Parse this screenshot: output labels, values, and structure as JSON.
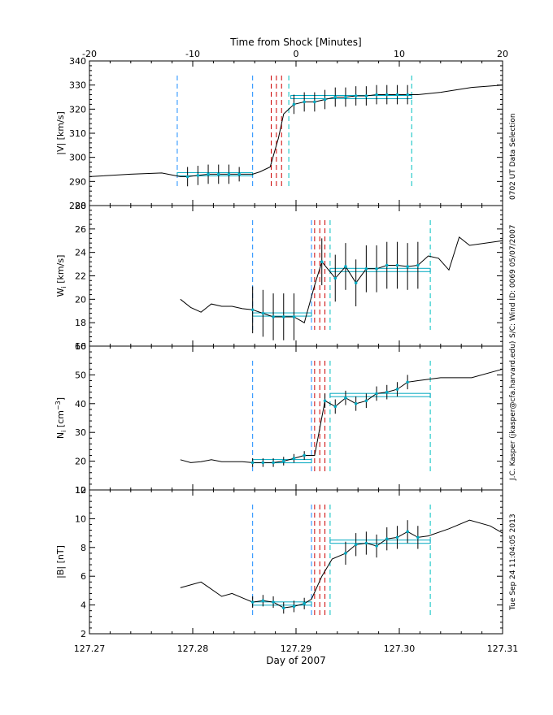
{
  "colors": {
    "axis": "#000000",
    "data": "#000000",
    "fit": "#00a8c0",
    "blue_dash": "#1a8cff",
    "cyan_dash": "#00c0c0",
    "red_dash": "#cc0000"
  },
  "top_axis": {
    "label": "Time from Shock [Minutes]",
    "range": [
      -20,
      20
    ],
    "ticks": [
      -20,
      -10,
      0,
      10,
      20
    ]
  },
  "bottom_axis": {
    "label": "Day of 2007",
    "range": [
      127.27,
      127.31
    ],
    "ticks": [
      "127.27",
      "127.28",
      "127.29",
      "127.30",
      "127.31"
    ]
  },
  "side_texts": [
    "0702 UT Data Selection",
    "S/C: Wind ID: 0069 05/07/2007",
    "J.C. Kasper (jkasper@cfa.harvard.edu)",
    "Tue Sep 24 11:04:05 2013"
  ],
  "chart_data": [
    {
      "type": "line",
      "panel": "V",
      "ylabel": "|V| [km/s]",
      "ylim": [
        280,
        340
      ],
      "yticks": [
        280,
        290,
        300,
        310,
        320,
        330,
        340
      ],
      "x_units": "Day of 2007",
      "series": [
        {
          "values": [
            [
              127.27,
              292
            ],
            [
              127.274,
              293
            ],
            [
              127.277,
              293.5
            ],
            [
              127.2788,
              292
            ],
            [
              127.2795,
              292
            ],
            [
              127.2805,
              292.5
            ],
            [
              127.2815,
              293
            ],
            [
              127.2825,
              293
            ],
            [
              127.2835,
              293
            ],
            [
              127.2845,
              293
            ],
            [
              127.2858,
              293
            ],
            [
              127.2865,
              294
            ],
            [
              127.2875,
              296
            ],
            [
              127.2883,
              308
            ],
            [
              127.2888,
              318
            ],
            [
              127.2898,
              322
            ],
            [
              127.2908,
              323
            ],
            [
              127.2918,
              323
            ],
            [
              127.2928,
              324
            ],
            [
              127.2938,
              325
            ],
            [
              127.2948,
              325
            ],
            [
              127.2958,
              325.5
            ],
            [
              127.2968,
              325.5
            ],
            [
              127.2978,
              326
            ],
            [
              127.2988,
              326
            ],
            [
              127.2998,
              326
            ],
            [
              127.3008,
              326
            ],
            [
              127.3018,
              326
            ],
            [
              127.304,
              327
            ],
            [
              127.307,
              329
            ],
            [
              127.31,
              330
            ]
          ]
        }
      ],
      "error_bars": {
        "x": [
          127.2795,
          127.2805,
          127.2815,
          127.2825,
          127.2835,
          127.2845,
          127.2898,
          127.2908,
          127.2918,
          127.2928,
          127.2938,
          127.2948,
          127.2958,
          127.2968,
          127.2978,
          127.2988,
          127.2998,
          127.3008
        ],
        "y": [
          292,
          292.5,
          293,
          293,
          293,
          293,
          322,
          323,
          323,
          324,
          325,
          325,
          325.5,
          325.5,
          326,
          326,
          326,
          326
        ],
        "err": [
          4,
          4,
          4,
          4,
          4,
          3,
          4,
          4,
          4,
          4,
          4,
          4,
          4,
          4,
          4,
          4,
          4,
          4
        ]
      },
      "upstream_mean": {
        "x": [
          127.2785,
          127.2858
        ],
        "y": 293
      },
      "downstream_mean": {
        "x": [
          127.2895,
          127.3012
        ],
        "y": 325
      },
      "blue_dashed_x": [
        127.2785,
        127.2858
      ],
      "red_dashed_x": [
        127.2876,
        127.2881,
        127.2886
      ],
      "cyan_dashed_x": [
        127.2893,
        127.3012
      ]
    },
    {
      "type": "line",
      "panel": "W",
      "ylabel": "W_i [km/s]",
      "ylim": [
        16,
        28
      ],
      "yticks": [
        16,
        18,
        20,
        22,
        24,
        26,
        28
      ],
      "x_units": "Day of 2007",
      "series": [
        {
          "values": [
            [
              127.2788,
              20
            ],
            [
              127.2798,
              19.3
            ],
            [
              127.2808,
              18.9
            ],
            [
              127.2818,
              19.6
            ],
            [
              127.2828,
              19.4
            ],
            [
              127.2838,
              19.4
            ],
            [
              127.2848,
              19.2
            ],
            [
              127.2858,
              19.1
            ],
            [
              127.2868,
              18.8
            ],
            [
              127.2878,
              18.5
            ],
            [
              127.2888,
              18.5
            ],
            [
              127.2898,
              18.5
            ],
            [
              127.2908,
              18
            ],
            [
              127.2918,
              21.2
            ],
            [
              127.2925,
              23.2
            ],
            [
              127.2938,
              21.8
            ],
            [
              127.2948,
              22.8
            ],
            [
              127.2958,
              21.4
            ],
            [
              127.2968,
              22.6
            ],
            [
              127.2978,
              22.6
            ],
            [
              127.2988,
              22.9
            ],
            [
              127.2998,
              22.9
            ],
            [
              127.3008,
              22.8
            ],
            [
              127.3018,
              22.9
            ],
            [
              127.3028,
              23.7
            ],
            [
              127.3038,
              23.5
            ],
            [
              127.3048,
              22.5
            ],
            [
              127.3058,
              25.3
            ],
            [
              127.3068,
              24.6
            ],
            [
              127.31,
              25
            ]
          ]
        }
      ],
      "error_bars": {
        "x": [
          127.2858,
          127.2868,
          127.2878,
          127.2888,
          127.2898,
          127.2925,
          127.2938,
          127.2948,
          127.2958,
          127.2968,
          127.2978,
          127.2988,
          127.2998,
          127.3008,
          127.3018
        ],
        "y": [
          19.1,
          18.8,
          18.5,
          18.5,
          18.5,
          23.2,
          21.8,
          22.8,
          21.4,
          22.6,
          22.6,
          22.9,
          22.9,
          22.8,
          22.9
        ],
        "err": [
          2,
          2,
          2,
          2,
          2,
          2,
          2,
          2,
          2,
          2,
          2,
          2,
          2,
          2,
          2
        ]
      },
      "upstream_mean": {
        "x": [
          127.2858,
          127.2915
        ],
        "y": 18.7
      },
      "downstream_mean": {
        "x": [
          127.2933,
          127.303
        ],
        "y": 22.5
      },
      "blue_dashed_x": [
        127.2858,
        127.2915
      ],
      "red_dashed_x": [
        127.2918,
        127.2923,
        127.2928
      ],
      "cyan_dashed_x": [
        127.2933,
        127.303
      ]
    },
    {
      "type": "line",
      "panel": "N",
      "ylabel": "N_i [cm^-3]",
      "ylim": [
        10,
        60
      ],
      "yticks": [
        10,
        20,
        30,
        40,
        50,
        60
      ],
      "x_units": "Day of 2007",
      "series": [
        {
          "values": [
            [
              127.2788,
              20.5
            ],
            [
              127.2798,
              19.5
            ],
            [
              127.2808,
              19.8
            ],
            [
              127.2818,
              20.5
            ],
            [
              127.2828,
              19.8
            ],
            [
              127.2838,
              19.8
            ],
            [
              127.2848,
              19.8
            ],
            [
              127.2858,
              19.5
            ],
            [
              127.2868,
              19.5
            ],
            [
              127.2878,
              19.5
            ],
            [
              127.2888,
              20
            ],
            [
              127.2898,
              21
            ],
            [
              127.2908,
              22
            ],
            [
              127.2915,
              22
            ],
            [
              127.2918,
              22
            ],
            [
              127.2928,
              41
            ],
            [
              127.2938,
              39
            ],
            [
              127.2948,
              42
            ],
            [
              127.2958,
              40
            ],
            [
              127.2968,
              41
            ],
            [
              127.2978,
              43.5
            ],
            [
              127.2988,
              44
            ],
            [
              127.2998,
              45
            ],
            [
              127.3008,
              47.5
            ],
            [
              127.3018,
              48
            ],
            [
              127.304,
              49
            ],
            [
              127.307,
              49
            ],
            [
              127.31,
              52
            ]
          ]
        }
      ],
      "error_bars": {
        "x": [
          127.2858,
          127.2868,
          127.2878,
          127.2888,
          127.2898,
          127.2908,
          127.2928,
          127.2938,
          127.2948,
          127.2958,
          127.2968,
          127.2978,
          127.2988,
          127.2998,
          127.3008
        ],
        "y": [
          19.5,
          19.5,
          19.5,
          20,
          21,
          22,
          41,
          39,
          42,
          40,
          41,
          43.5,
          44,
          45,
          47.5
        ],
        "err": [
          1.5,
          1.5,
          1.5,
          1.5,
          1.5,
          1.5,
          2.5,
          2.5,
          2.5,
          2.5,
          2.5,
          2.5,
          2.5,
          2.5,
          2.5
        ]
      },
      "upstream_mean": {
        "x": [
          127.2858,
          127.2915
        ],
        "y": 20
      },
      "downstream_mean": {
        "x": [
          127.2933,
          127.303
        ],
        "y": 43
      },
      "blue_dashed_x": [
        127.2858,
        127.2915
      ],
      "red_dashed_x": [
        127.2918,
        127.2923,
        127.2928
      ],
      "cyan_dashed_x": [
        127.2933,
        127.303
      ]
    },
    {
      "type": "line",
      "panel": "B",
      "ylabel": "|B| [nT]",
      "ylim": [
        2,
        12
      ],
      "yticks": [
        2,
        4,
        6,
        8,
        10,
        12
      ],
      "x_units": "Day of 2007",
      "series": [
        {
          "values": [
            [
              127.2788,
              5.2
            ],
            [
              127.2808,
              5.6
            ],
            [
              127.2828,
              4.6
            ],
            [
              127.2838,
              4.8
            ],
            [
              127.2848,
              4.5
            ],
            [
              127.2858,
              4.2
            ],
            [
              127.2868,
              4.3
            ],
            [
              127.2878,
              4.2
            ],
            [
              127.2888,
              3.8
            ],
            [
              127.2898,
              3.9
            ],
            [
              127.2908,
              4.1
            ],
            [
              127.2915,
              4.4
            ],
            [
              127.2925,
              6
            ],
            [
              127.2935,
              7.2
            ],
            [
              127.2948,
              7.6
            ],
            [
              127.2958,
              8.2
            ],
            [
              127.2968,
              8.3
            ],
            [
              127.2978,
              8.1
            ],
            [
              127.2988,
              8.6
            ],
            [
              127.2998,
              8.7
            ],
            [
              127.3008,
              9.1
            ],
            [
              127.3018,
              8.7
            ],
            [
              127.3028,
              8.8
            ],
            [
              127.3048,
              9.3
            ],
            [
              127.3068,
              9.9
            ],
            [
              127.3088,
              9.5
            ],
            [
              127.31,
              9
            ]
          ]
        }
      ],
      "error_bars": {
        "x": [
          127.2858,
          127.2868,
          127.2878,
          127.2888,
          127.2898,
          127.2908,
          127.2948,
          127.2958,
          127.2968,
          127.2978,
          127.2988,
          127.2998,
          127.3008,
          127.3018
        ],
        "y": [
          4.2,
          4.3,
          4.2,
          3.8,
          3.9,
          4.1,
          7.6,
          8.2,
          8.3,
          8.1,
          8.6,
          8.7,
          9.1,
          8.7
        ],
        "err": [
          0.4,
          0.4,
          0.4,
          0.4,
          0.4,
          0.4,
          0.8,
          0.8,
          0.8,
          0.8,
          0.8,
          0.8,
          0.8,
          0.8
        ]
      },
      "upstream_mean": {
        "x": [
          127.2858,
          127.2915
        ],
        "y": 4.1
      },
      "downstream_mean": {
        "x": [
          127.2933,
          127.303
        ],
        "y": 8.4
      },
      "blue_dashed_x": [
        127.2858,
        127.2915
      ],
      "red_dashed_x": [
        127.2918,
        127.2923,
        127.2928
      ],
      "cyan_dashed_x": [
        127.2933,
        127.303
      ]
    }
  ]
}
